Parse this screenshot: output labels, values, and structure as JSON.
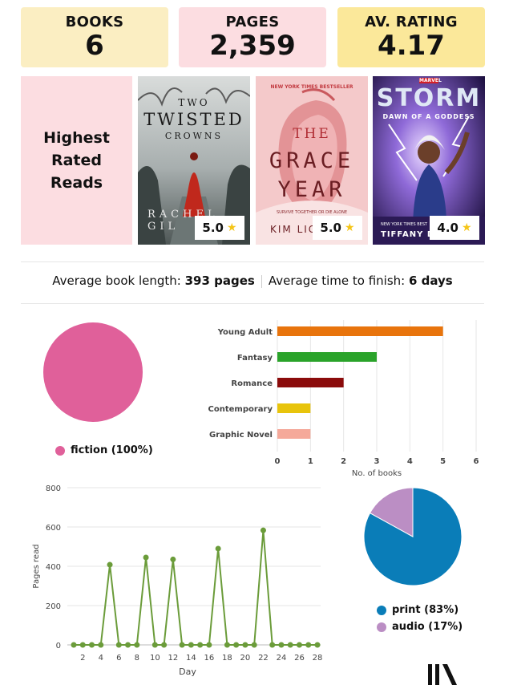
{
  "stats": {
    "books": {
      "label": "BOOKS",
      "value": "6"
    },
    "pages": {
      "label": "PAGES",
      "value": "2,359"
    },
    "rating": {
      "label": "AV. RATING",
      "value": "4.17"
    }
  },
  "highest_rated": {
    "title": "Highest\nRated\nReads",
    "books": [
      {
        "cover_lines": [
          "TWO",
          "TWISTED",
          "CROWNS"
        ],
        "author": "RACHEL GIL",
        "rating": "5.0"
      },
      {
        "tagline": "NEW YORK TIMES BESTSELLER",
        "cover_lines": [
          "THE",
          "GRACE",
          "YEAR"
        ],
        "subtitle": "SURVIVE TOGETHER OR DIE ALONE",
        "author": "KIM LIG",
        "rating": "5.0"
      },
      {
        "publisher": "MARVEL",
        "cover_lines": [
          "STORM"
        ],
        "subtitle": "DAWN OF A GODDESS",
        "tagline": "NEW YORK TIMES BEST",
        "author": "TIFFANY D.",
        "rating": "4.0"
      }
    ]
  },
  "averages": {
    "length_label": "Average book length: ",
    "length_value": "393 pages",
    "time_label": "Average time to finish: ",
    "time_value": "6 days"
  },
  "chart_data": [
    {
      "type": "pie",
      "slices": [
        {
          "label": "fiction (100%)",
          "value": 100,
          "color": "#e0609a"
        }
      ]
    },
    {
      "type": "bar",
      "orientation": "horizontal",
      "categories": [
        "Young Adult",
        "Fantasy",
        "Romance",
        "Contemporary",
        "Graphic Novel"
      ],
      "values": [
        5,
        3,
        2,
        1,
        1
      ],
      "colors": [
        "#e8740c",
        "#2aa32a",
        "#8b0b0b",
        "#e8c40c",
        "#f5a99a"
      ],
      "xlabel": "No. of books",
      "xlim": [
        0,
        6
      ],
      "xticks": [
        0,
        1,
        2,
        3,
        4,
        5,
        6
      ]
    },
    {
      "type": "line",
      "x": [
        1,
        2,
        3,
        4,
        5,
        6,
        7,
        8,
        9,
        10,
        11,
        12,
        13,
        14,
        15,
        16,
        17,
        18,
        19,
        20,
        21,
        22,
        23,
        24,
        25,
        26,
        27,
        28
      ],
      "y": [
        0,
        0,
        0,
        0,
        408,
        0,
        0,
        0,
        445,
        0,
        0,
        435,
        0,
        0,
        0,
        0,
        490,
        0,
        0,
        0,
        0,
        583,
        0,
        0,
        0,
        0,
        0,
        0
      ],
      "color": "#6b9c3a",
      "xlabel": "Day",
      "ylabel": "Pages read",
      "ylim": [
        0,
        800
      ],
      "yticks": [
        0,
        200,
        400,
        600,
        800
      ],
      "xticks": [
        2,
        4,
        6,
        8,
        10,
        12,
        14,
        16,
        18,
        20,
        22,
        24,
        26,
        28
      ]
    },
    {
      "type": "pie",
      "slices": [
        {
          "label": "print (83%)",
          "value": 83,
          "color": "#0a7db8"
        },
        {
          "label": "audio (17%)",
          "value": 17,
          "color": "#bb8ec4"
        }
      ]
    }
  ]
}
